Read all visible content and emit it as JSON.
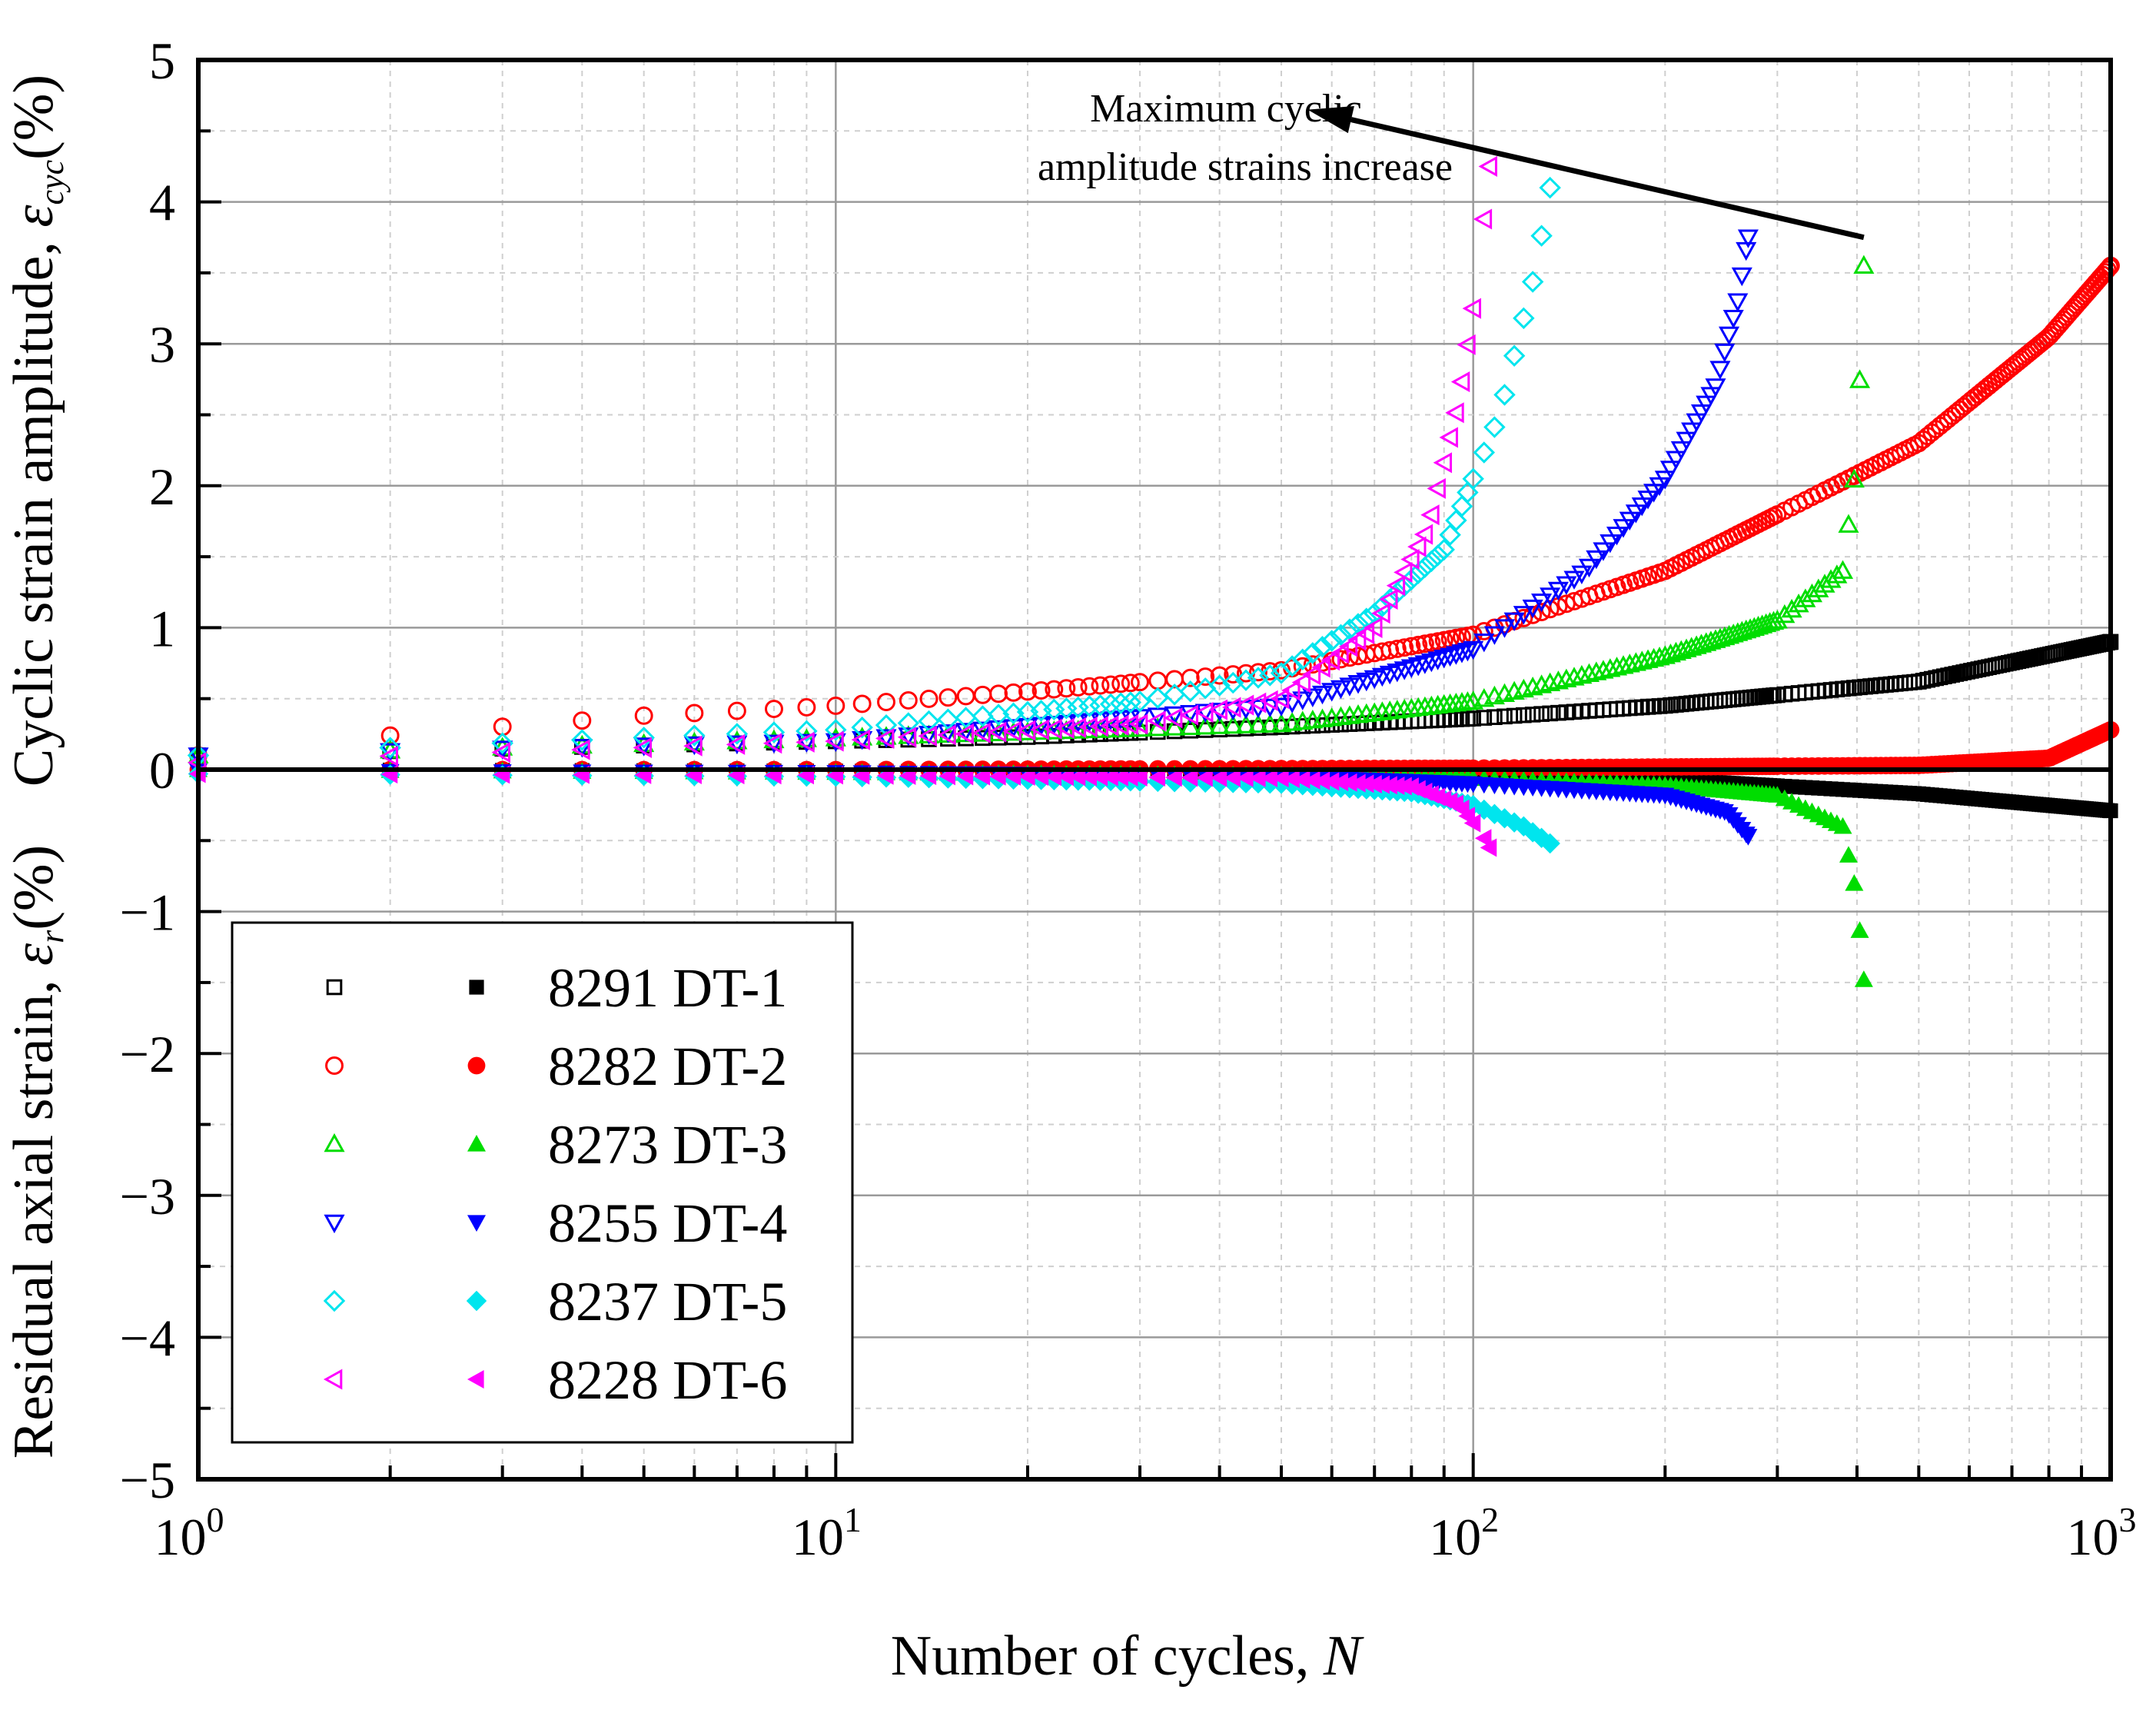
{
  "chart_data": {
    "type": "scatter",
    "title": "",
    "xlabel_prefix": "Number of cycles, ",
    "xlabel_var": "N",
    "ylabel_upper_prefix": "Cyclic strain amplitude, ",
    "ylabel_upper_sym": "ε",
    "ylabel_upper_sub": "cyc",
    "ylabel_upper_unit": "(%)",
    "ylabel_lower_prefix": "Residual axial strain, ",
    "ylabel_lower_sym": "ε",
    "ylabel_lower_sub": "r",
    "ylabel_lower_unit": "(%)",
    "xscale": "log",
    "xlim": [
      1,
      1000
    ],
    "ylim": [
      -5,
      5
    ],
    "grid": true,
    "x_tick_labels": [
      {
        "base": "10",
        "exp": "0",
        "value": 1
      },
      {
        "base": "10",
        "exp": "1",
        "value": 10
      },
      {
        "base": "10",
        "exp": "2",
        "value": 100
      },
      {
        "base": "10",
        "exp": "3",
        "value": 1000
      }
    ],
    "y_tick_labels": [
      {
        "label": "5",
        "value": 5
      },
      {
        "label": "4",
        "value": 4
      },
      {
        "label": "3",
        "value": 3
      },
      {
        "label": "2",
        "value": 2
      },
      {
        "label": "1",
        "value": 1
      },
      {
        "label": "0",
        "value": 0
      },
      {
        "label": "−1",
        "value": -1
      },
      {
        "label": "−2",
        "value": -2
      },
      {
        "label": "−3",
        "value": -3
      },
      {
        "label": "−4",
        "value": -4
      },
      {
        "label": "−5",
        "value": -5
      }
    ],
    "annotation": {
      "line1": "Maximum cyclic",
      "line2": "amplitude strains increase",
      "arrow_from": {
        "x": 410,
        "y": 3.75
      },
      "arrow_to": {
        "x": 55,
        "y": 4.65
      }
    },
    "legend_position": "bottom-left",
    "series": [
      {
        "name": "8291 DT-1",
        "color": "#000000",
        "open_marker": "square",
        "filled_marker": "square",
        "nf": 1000,
        "amplitude": [
          [
            1,
            0.1
          ],
          [
            10,
            0.2
          ],
          [
            20,
            0.23
          ],
          [
            50,
            0.3
          ],
          [
            100,
            0.36
          ],
          [
            200,
            0.45
          ],
          [
            500,
            0.62
          ],
          [
            1000,
            0.9
          ]
        ],
        "residual": [
          [
            1,
            0
          ],
          [
            10,
            -0.01
          ],
          [
            50,
            -0.02
          ],
          [
            100,
            -0.03
          ],
          [
            200,
            -0.07
          ],
          [
            500,
            -0.17
          ],
          [
            1000,
            -0.29
          ]
        ]
      },
      {
        "name": "8282 DT-2",
        "color": "#ff0000",
        "open_marker": "circle",
        "filled_marker": "circle",
        "nf": 1000,
        "amplitude": [
          [
            1,
            0.1
          ],
          [
            2,
            0.24
          ],
          [
            5,
            0.38
          ],
          [
            10,
            0.45
          ],
          [
            20,
            0.55
          ],
          [
            50,
            0.7
          ],
          [
            100,
            0.95
          ],
          [
            200,
            1.4
          ],
          [
            500,
            2.3
          ],
          [
            800,
            3.05
          ],
          [
            1000,
            3.55
          ]
        ],
        "residual": [
          [
            1,
            0
          ],
          [
            10,
            0
          ],
          [
            100,
            0.01
          ],
          [
            500,
            0.03
          ],
          [
            800,
            0.08
          ],
          [
            1000,
            0.28
          ]
        ]
      },
      {
        "name": "8273 DT-3",
        "color": "#00dd00",
        "open_marker": "triangle-up",
        "filled_marker": "triangle-up",
        "nf": 410,
        "amplitude": [
          [
            1,
            0.1
          ],
          [
            5,
            0.18
          ],
          [
            10,
            0.22
          ],
          [
            50,
            0.32
          ],
          [
            100,
            0.48
          ],
          [
            200,
            0.8
          ],
          [
            300,
            1.05
          ],
          [
            380,
            1.4
          ],
          [
            400,
            2.2
          ],
          [
            410,
            3.55
          ]
        ],
        "residual": [
          [
            1,
            0
          ],
          [
            10,
            -0.02
          ],
          [
            50,
            -0.04
          ],
          [
            100,
            -0.06
          ],
          [
            200,
            -0.11
          ],
          [
            300,
            -0.18
          ],
          [
            380,
            -0.4
          ],
          [
            400,
            -0.9
          ],
          [
            410,
            -1.48
          ]
        ]
      },
      {
        "name": "8255 DT-4",
        "color": "#0000ff",
        "open_marker": "triangle-down",
        "filled_marker": "triangle-down",
        "nf": 270,
        "amplitude": [
          [
            1,
            0.1
          ],
          [
            10,
            0.2
          ],
          [
            50,
            0.45
          ],
          [
            100,
            0.85
          ],
          [
            150,
            1.4
          ],
          [
            200,
            2.05
          ],
          [
            240,
            2.7
          ],
          [
            260,
            3.3
          ],
          [
            270,
            3.75
          ]
        ],
        "residual": [
          [
            1,
            -0.01
          ],
          [
            10,
            -0.02
          ],
          [
            50,
            -0.05
          ],
          [
            100,
            -0.1
          ],
          [
            200,
            -0.18
          ],
          [
            250,
            -0.3
          ],
          [
            270,
            -0.47
          ]
        ]
      },
      {
        "name": "8237 DT-5",
        "color": "#00e5ee",
        "open_marker": "diamond",
        "filled_marker": "diamond",
        "nf": 132,
        "amplitude": [
          [
            1,
            0.1
          ],
          [
            10,
            0.28
          ],
          [
            30,
            0.48
          ],
          [
            50,
            0.68
          ],
          [
            70,
            1.1
          ],
          [
            90,
            1.55
          ],
          [
            110,
            2.5
          ],
          [
            125,
            3.5
          ],
          [
            132,
            4.1
          ]
        ],
        "residual": [
          [
            1,
            -0.03
          ],
          [
            10,
            -0.05
          ],
          [
            50,
            -0.1
          ],
          [
            80,
            -0.16
          ],
          [
            100,
            -0.25
          ],
          [
            120,
            -0.4
          ],
          [
            132,
            -0.52
          ]
        ]
      },
      {
        "name": "8228 DT-6",
        "color": "#ff00ff",
        "open_marker": "triangle-left",
        "filled_marker": "triangle-left",
        "nf": 106,
        "amplitude": [
          [
            1,
            0.05
          ],
          [
            10,
            0.2
          ],
          [
            30,
            0.32
          ],
          [
            50,
            0.5
          ],
          [
            70,
            1.0
          ],
          [
            85,
            1.7
          ],
          [
            95,
            2.6
          ],
          [
            102,
            3.5
          ],
          [
            106,
            4.25
          ]
        ],
        "residual": [
          [
            1,
            -0.03
          ],
          [
            10,
            -0.04
          ],
          [
            50,
            -0.06
          ],
          [
            80,
            -0.12
          ],
          [
            95,
            -0.25
          ],
          [
            103,
            -0.45
          ],
          [
            106,
            -0.55
          ]
        ]
      }
    ]
  }
}
